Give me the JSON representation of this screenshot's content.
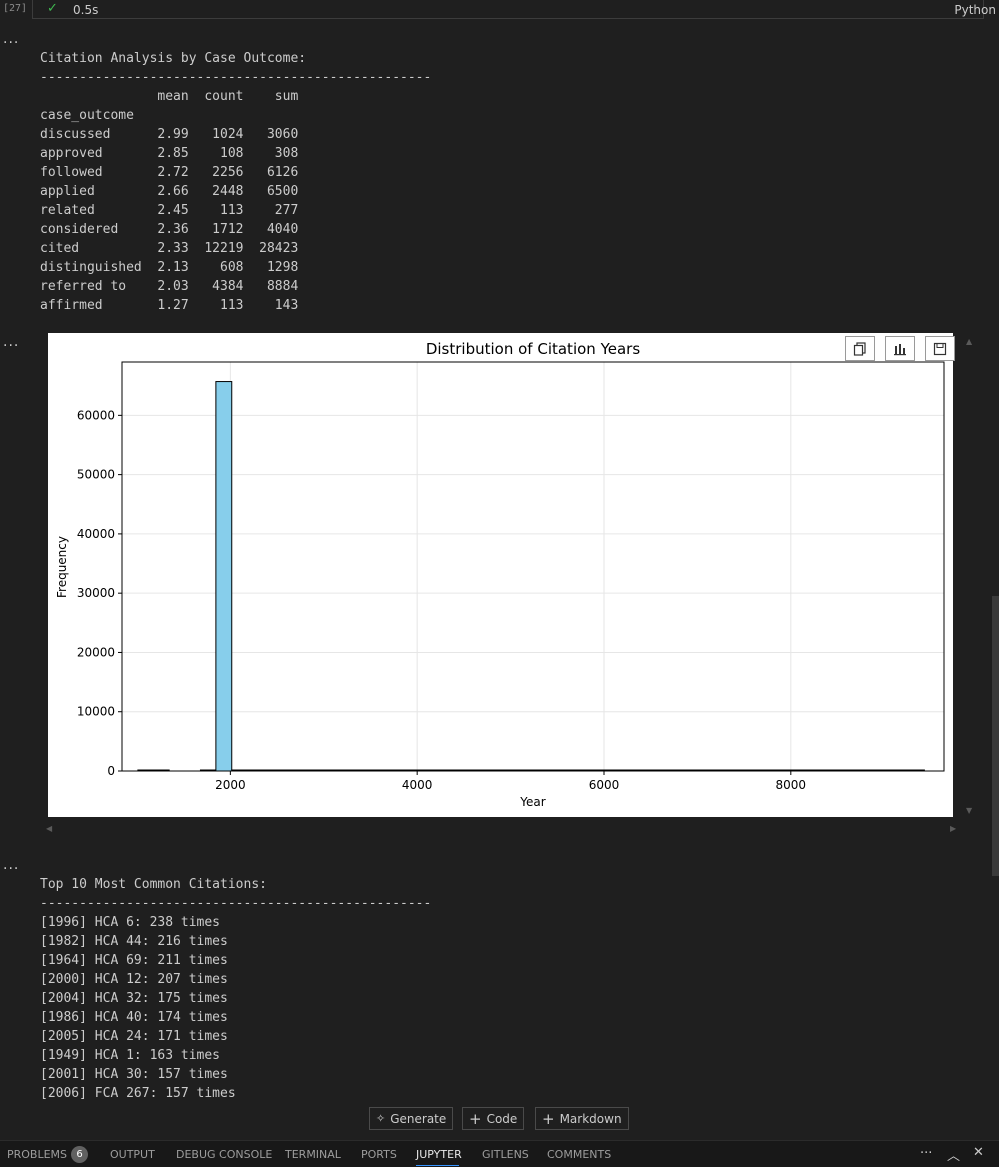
{
  "cell": {
    "execution_count": "[27]",
    "exec_time": "0.5s",
    "language": "Python",
    "ellipsis": "..."
  },
  "output1": {
    "text": "Citation Analysis by Case Outcome:\n--------------------------------------------------\n               mean  count    sum\ncase_outcome                      \ndiscussed      2.99   1024   3060\napproved       2.85    108    308\nfollowed       2.72   2256   6126\napplied        2.66   2448   6500\nrelated        2.45    113    277\nconsidered     2.36   1712   4040\ncited          2.33  12219  28423\ndistinguished  2.13    608   1298\nreferred to    2.03   4384   8884\naffirmed       1.27    113    143"
  },
  "output3": {
    "text": "Top 10 Most Common Citations:\n--------------------------------------------------\n[1996] HCA 6: 238 times\n[1982] HCA 44: 216 times\n[1964] HCA 69: 211 times\n[2000] HCA 12: 207 times\n[2004] HCA 32: 175 times\n[1986] HCA 40: 174 times\n[2005] HCA 24: 171 times\n[1949] HCA 1: 163 times\n[2001] HCA 30: 157 times\n[2006] FCA 267: 157 times"
  },
  "plot_toolbar": {
    "copy_icon": "copy-icon",
    "chart_icon": "chart-icon",
    "save_icon": "save-icon"
  },
  "chart_data": {
    "type": "bar",
    "title": "Distribution of Citation Years",
    "xlabel": "Year",
    "ylabel": "Frequency",
    "xlim": [
      840,
      9640
    ],
    "ylim": [
      0,
      69000
    ],
    "xticks": [
      2000,
      4000,
      6000,
      8000
    ],
    "yticks": [
      0,
      10000,
      20000,
      30000,
      40000,
      50000,
      60000
    ],
    "grid": true,
    "bar_color": "#87ceeb",
    "bins": [
      {
        "x0": 1010,
        "x1": 1345,
        "value": 120
      },
      {
        "x0": 1680,
        "x1": 1845,
        "value": 80
      },
      {
        "x0": 1845,
        "x1": 2015,
        "value": 65700
      },
      {
        "x0": 2015,
        "x1": 9430,
        "value": 10
      }
    ]
  },
  "bottom_toolbar": {
    "generate": "Generate",
    "code": "Code",
    "markdown": "Markdown"
  },
  "panel": {
    "tabs": [
      "PROBLEMS",
      "OUTPUT",
      "DEBUG CONSOLE",
      "TERMINAL",
      "PORTS",
      "JUPYTER",
      "GITLENS",
      "COMMENTS"
    ],
    "active_tab": "JUPYTER",
    "problems_count": "6",
    "more": "···",
    "maximize_icon": "chevron-up-icon",
    "close_icon": "close-icon"
  },
  "colors": {
    "background": "#1f1f1f",
    "success": "#3fb950",
    "active_tab_underline": "#3794ff"
  }
}
